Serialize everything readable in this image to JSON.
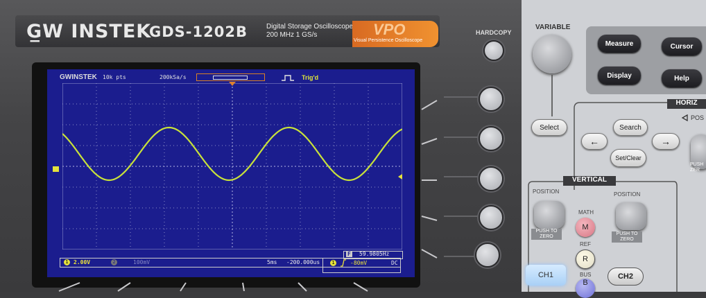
{
  "header": {
    "brand": "G̲W INSTEK",
    "model": "GDS-1202B",
    "description_line1": "Digital Storage Oscilloscope",
    "description_line2": "200 MHz  1 GS/s",
    "vpo_logo": "VPO",
    "vpo_subtitle": "Visual Persistence Oscilloscope",
    "hardcopy_label": "HARDCOPY"
  },
  "screen": {
    "brand": "GWINSTEK",
    "record_length": "10k pts",
    "sample_rate": "200kSa/s",
    "trigger_state": "Trig'd",
    "ch1_marker": "1",
    "frequency_label": "F",
    "frequency_value": "59.9805Hz",
    "ch1_badge": "1",
    "ch1_scale": "2.00V",
    "ch2_badge": "2",
    "ch2_scale": "100mV",
    "timebase": "5ms",
    "horizontal_position": "-200.000us",
    "trigger_source": "1",
    "trigger_level": "-80mV",
    "trigger_coupling": "DC",
    "waveform_color": "#c8e23a",
    "background_color": "#1b1d8e"
  },
  "panel": {
    "variable_label": "VARIABLE",
    "measure": "Measure",
    "cursor": "Cursor",
    "display": "Display",
    "help": "Help",
    "select": "Select",
    "horizontal_label": "HORIZ",
    "horizontal_position_label": "POS",
    "search": "Search",
    "set_clear": "Set/Clear",
    "vertical_label": "VERTICAL",
    "position_left": "POSITION",
    "position_right": "POSITION",
    "push_to_zero_left": "PUSH TO ZERO",
    "push_to_zero_right": "PUSH TO ZERO",
    "push_to_zero_far": "PUSH ZER",
    "math_label": "MATH",
    "math_button": "M",
    "ref_label": "REF",
    "ref_button": "R",
    "bus_label": "BUS",
    "bus_button": "B",
    "ch1": "CH1",
    "ch2": "CH2",
    "left_arrow": "←",
    "right_arrow": "→"
  }
}
